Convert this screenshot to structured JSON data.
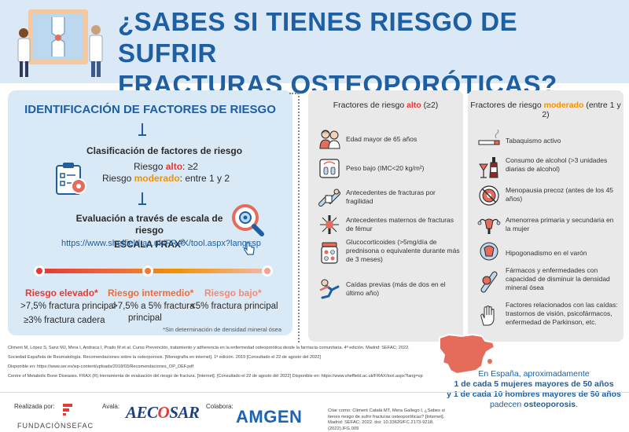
{
  "title": {
    "line1": "¿SABES SI TIENES RIESGO DE SUFRIR",
    "line2": "FRACTURAS OSTEOPORÓTICAS?"
  },
  "left": {
    "heading": "IDENTIFICACIÓN DE FACTORES DE RIESGO",
    "classification": {
      "title": "Clasificación de factores de riesgo",
      "high_prefix": "Riesgo ",
      "high_word": "alto",
      "high_suffix": ": ≥2",
      "mod_prefix": "Riesgo ",
      "mod_word": "moderado",
      "mod_suffix": ": entre 1 y 2"
    },
    "evaluation": {
      "line1": "Evaluación a través de escala de riesgo",
      "line2": "ESCALA FRAX",
      "sup": "®"
    },
    "url": "https://www.sheffield.ac.uk/FRAX/tool.aspx?lang=sp",
    "columns": [
      {
        "heading": "Riesgo elevado*",
        "line1": ">7,5% fractura principal",
        "line2": "≥3% fractura cadera"
      },
      {
        "heading": "Riesgo intermedio*",
        "line1": ">7,5% a 5% fractura",
        "line2": "principal"
      },
      {
        "heading": "Riesgo bajo*",
        "line1": "<5% fractura principal",
        "line2": ""
      }
    ],
    "note": "*Sin determinación de densidad mineral ósea"
  },
  "high_factors": {
    "title_prefix": "Fractores de riesgo ",
    "title_word": "alto",
    "title_suffix": " (≥2)",
    "items": [
      {
        "icon": "elderly-couple-icon",
        "text": "Edad mayor de 65 años"
      },
      {
        "icon": "scale-icon",
        "text": "Peso bajo (IMC<20 kg/m²)"
      },
      {
        "icon": "broken-arm-icon",
        "text": "Antecedentes de fracturas por fragilidad"
      },
      {
        "icon": "fracture-icon",
        "text": "Antecedentes maternos de fracturas de fémur"
      },
      {
        "icon": "pills-icon",
        "text": "Glucocorticoides (>5mg/día de prednisona o equivalente durante más de 3 meses)"
      },
      {
        "icon": "falling-person-icon",
        "text": "Caídas previas (más de dos en el último año)"
      }
    ]
  },
  "mod_factors": {
    "title_prefix": "Fractores de riesgo ",
    "title_word": "moderado",
    "title_suffix": " (entre 1 y 2)",
    "items": [
      {
        "icon": "cigarette-icon",
        "text": "Tabaquismo activo"
      },
      {
        "icon": "alcohol-icon",
        "text": "Consumo de alcohol (>3 unidades diarias de alcohol)"
      },
      {
        "icon": "menopause-icon",
        "text": "Menopausia precoz (antes de los 45 años)"
      },
      {
        "icon": "uterus-icon",
        "text": "Amenorrea primaria y secundaria en la mujer"
      },
      {
        "icon": "hormone-icon",
        "text": "Hipogonadismo en el varón"
      },
      {
        "icon": "bone-medication-icon",
        "text": "Fármacos y enfermedades con capacidad de disminuir la densidad mineral ósea"
      },
      {
        "icon": "hand-icon",
        "text": "Factores relacionados con las caídas: trastornos de visión, psicofármacos, enfermedad de Parkinson, etc."
      }
    ]
  },
  "references": [
    "Climent M, López S, Sanz MJ, Mera I, Andraca I, Prado M et al. Curso Prevención, tratamiento y adherencia en la enfermedad osteoporótica desde la farmacia comunitaria. 4ª edición. Madrid: SEFAC; 2022.",
    "Sociedad Española de Reumatología. Recomendaciones sobre la osteoporosis. [Monografía en internet]. 1ª edición. 2019 [Consultado el 22 de agosto del 2022]",
    "Disponible en: https://www.ser.es/wp-content/uploads/2018/03/Recomendaciones_OP_DEF.pdf",
    "Centre of Metabolic Bone Diseases. FRAX (R) Herramienta de evaluación del riesgo de fractura. [Internet]. [Consultado el 22 de agosto del 2022] Disponible en: https://www.sheffield.ac.uk/FRAX/tool.aspx?lang=sp"
  ],
  "stat": {
    "line1": "En España, aproximadamente",
    "line2": "1 de cada 5 mujeres mayores de 50 años",
    "line3": "y 1 de cada 10 hombres mayores de 50 años",
    "line4_pre": "padecen ",
    "line4_bold": "osteoporosis",
    "line4_post": "."
  },
  "footer": {
    "made_by": "Realizada por:",
    "endorsed": "Avala:",
    "collab": "Colabora:",
    "fund": "FUNDACIÓNSEFAC",
    "aecosar_a": "AEC",
    "aecosar_o": "O",
    "aecosar_b": "SAR",
    "amgen": "AMGEN",
    "cite": "Citar como: Climent Catalá MT, Mera Gallego I. ¿Sabes si tienes riesgo de sufrir fracturas osteoporóticas? [Internet]. Madrid: SEFAC; 2022. doi: 10.33620/FC.2173-9218.(2022).IFG.009"
  },
  "colors": {
    "accent": "#1d5fa2",
    "high": "#e53935",
    "moderate": "#f29200",
    "low": "#f2a090"
  }
}
